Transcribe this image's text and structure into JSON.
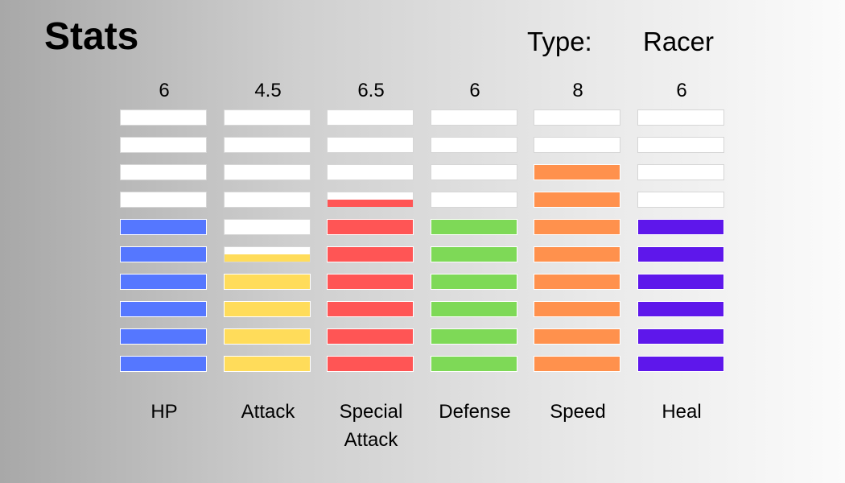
{
  "header": {
    "title": "Stats",
    "type_label": "Type:",
    "type_value": "Racer"
  },
  "max_segments": 10,
  "empty_color": "#ffffff",
  "stats": [
    {
      "name": "HP",
      "value": "6",
      "level": 6,
      "color": "#5577ff"
    },
    {
      "name": "Attack",
      "value": "4.5",
      "level": 4.5,
      "color": "#ffdc5a"
    },
    {
      "name": "Special\nAttack",
      "value": "6.5",
      "level": 6.5,
      "color": "#ff5555"
    },
    {
      "name": "Defense",
      "value": "6",
      "level": 6,
      "color": "#7ed957"
    },
    {
      "name": "Speed",
      "value": "8",
      "level": 8,
      "color": "#ff914d"
    },
    {
      "name": "Heal",
      "value": "6",
      "level": 6,
      "color": "#5e17eb"
    }
  ]
}
